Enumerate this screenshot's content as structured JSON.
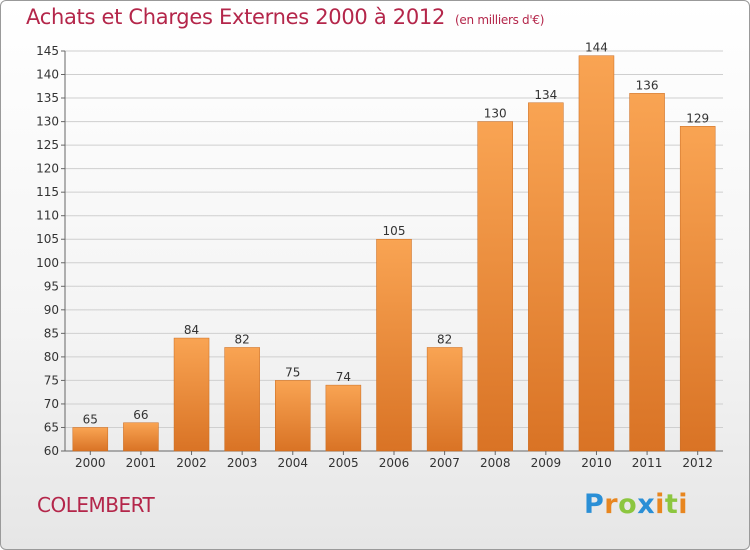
{
  "title": "Achats et Charges Externes 2000 à 2012",
  "unit_note": "(en milliers d'€)",
  "place": "COLEMBERT",
  "logo": {
    "text": "Proxiti",
    "letters": [
      {
        "char": "P",
        "color": "#2a8fd6"
      },
      {
        "char": "r",
        "color": "#e8861f"
      },
      {
        "char": "o",
        "color": "#8cc63f"
      },
      {
        "char": "x",
        "color": "#2a8fd6"
      },
      {
        "char": "i",
        "color": "#e8861f"
      },
      {
        "char": "t",
        "color": "#8cc63f"
      },
      {
        "char": "i",
        "color": "#e8861f"
      }
    ]
  },
  "colors": {
    "bar_light": "#f9a453",
    "bar_dark": "#d97325",
    "title": "#b4264a",
    "grid": "#cfcfcf"
  },
  "chart_data": {
    "type": "bar",
    "categories": [
      "2000",
      "2001",
      "2002",
      "2003",
      "2004",
      "2005",
      "2006",
      "2007",
      "2008",
      "2009",
      "2010",
      "2011",
      "2012"
    ],
    "values": [
      65,
      66,
      84,
      82,
      75,
      74,
      105,
      82,
      130,
      134,
      144,
      136,
      129
    ],
    "ylim": [
      60,
      145
    ],
    "yticks": [
      60,
      65,
      70,
      75,
      80,
      85,
      90,
      95,
      100,
      105,
      110,
      115,
      120,
      125,
      130,
      135,
      140,
      145
    ],
    "grid": true,
    "legend": "none"
  }
}
